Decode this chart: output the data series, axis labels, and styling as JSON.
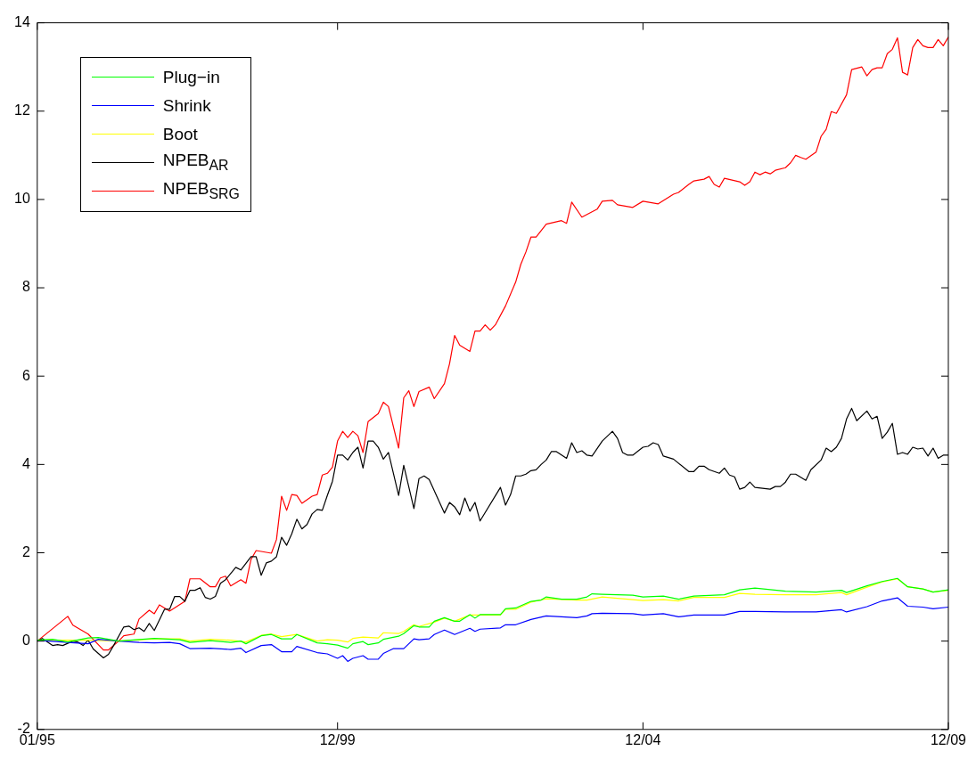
{
  "chart_data": {
    "type": "line",
    "xlim": [
      "1995-01",
      "2009-12"
    ],
    "xticks": [
      {
        "value": "1995-01",
        "label": "01/95"
      },
      {
        "value": "1999-12",
        "label": "12/99"
      },
      {
        "value": "2004-12",
        "label": "12/04"
      },
      {
        "value": "2009-12",
        "label": "12/09"
      }
    ],
    "ylim": [
      -2,
      14
    ],
    "yticks": [
      -2,
      0,
      2,
      4,
      6,
      8,
      10,
      12,
      14
    ],
    "grid": false,
    "legend": "top left",
    "marker": "none",
    "line_style": "solid",
    "series": [
      {
        "name": "Plug−in",
        "color": "#00ff00",
        "x": [
          "1995-01",
          "1995-04",
          "1995-07",
          "1995-11",
          "1996-01",
          "1996-05",
          "1996-12",
          "1997-05",
          "1997-07",
          "1997-11",
          "1998-03",
          "1998-05",
          "1998-06",
          "1998-09",
          "1998-11",
          "1999-01",
          "1999-03",
          "1999-04",
          "1999-08",
          "1999-10",
          "1999-12",
          "2000-02",
          "2000-03",
          "2000-05",
          "2000-06",
          "2000-08",
          "2000-09",
          "2000-12",
          "2001-01",
          "2001-03",
          "2001-04",
          "2001-06",
          "2001-07",
          "2001-09",
          "2001-11",
          "2001-12",
          "2002-02",
          "2002-03",
          "2002-04",
          "2002-08",
          "2002-09",
          "2002-11",
          "2003-02",
          "2003-04",
          "2003-05",
          "2003-08",
          "2003-11",
          "2004-01",
          "2004-02",
          "2004-04",
          "2004-10",
          "2004-12",
          "2005-04",
          "2005-07",
          "2005-10",
          "2006-04",
          "2006-07",
          "2006-10",
          "2007-04",
          "2007-10",
          "2008-03",
          "2008-04",
          "2008-08",
          "2008-11",
          "2009-02",
          "2009-04",
          "2009-07",
          "2009-09",
          "2009-12"
        ],
        "values": [
          0.02,
          0.04,
          -0.02,
          0.07,
          0.08,
          0,
          0.06,
          0.03,
          -0.03,
          0.01,
          -0.03,
          0,
          -0.06,
          0.12,
          0.15,
          0.05,
          0.05,
          0.15,
          -0.04,
          -0.06,
          -0.09,
          -0.16,
          -0.06,
          -0.01,
          -0.08,
          -0.04,
          0.04,
          0.11,
          0.17,
          0.35,
          0.32,
          0.32,
          0.45,
          0.53,
          0.45,
          0.45,
          0.6,
          0.52,
          0.6,
          0.6,
          0.73,
          0.75,
          0.9,
          0.93,
          1.0,
          0.95,
          0.95,
          1.0,
          1.07,
          1.06,
          1.04,
          1.0,
          1.02,
          0.95,
          1.02,
          1.05,
          1.16,
          1.2,
          1.13,
          1.11,
          1.15,
          1.1,
          1.25,
          1.35,
          1.42,
          1.23,
          1.18,
          1.11,
          1.16
        ]
      },
      {
        "name": "Shrink",
        "color": "#0000ff",
        "x": [
          "1995-01",
          "1995-07",
          "1995-11",
          "1996-01",
          "1996-05",
          "1996-09",
          "1996-12",
          "1997-03",
          "1997-05",
          "1997-07",
          "1997-11",
          "1998-03",
          "1998-05",
          "1998-06",
          "1998-09",
          "1998-11",
          "1999-01",
          "1999-03",
          "1999-04",
          "1999-08",
          "1999-10",
          "1999-12",
          "2000-01",
          "2000-02",
          "2000-03",
          "2000-05",
          "2000-06",
          "2000-08",
          "2000-09",
          "2000-11",
          "2001-01",
          "2001-03",
          "2001-04",
          "2001-06",
          "2001-07",
          "2001-09",
          "2001-11",
          "2002-02",
          "2002-03",
          "2002-04",
          "2002-08",
          "2002-09",
          "2002-11",
          "2003-02",
          "2003-05",
          "2003-11",
          "2004-01",
          "2004-02",
          "2004-04",
          "2004-10",
          "2004-12",
          "2005-04",
          "2005-07",
          "2005-10",
          "2006-04",
          "2006-07",
          "2006-10",
          "2007-04",
          "2007-10",
          "2008-03",
          "2008-04",
          "2008-08",
          "2008-11",
          "2009-02",
          "2009-04",
          "2009-07",
          "2009-09",
          "2009-12"
        ],
        "values": [
          0.02,
          -0.03,
          -0.06,
          0.04,
          0,
          -0.03,
          -0.04,
          -0.03,
          -0.06,
          -0.17,
          -0.16,
          -0.19,
          -0.16,
          -0.26,
          -0.1,
          -0.08,
          -0.24,
          -0.24,
          -0.12,
          -0.26,
          -0.29,
          -0.39,
          -0.33,
          -0.46,
          -0.39,
          -0.33,
          -0.41,
          -0.41,
          -0.28,
          -0.17,
          -0.17,
          0.05,
          0.03,
          0.05,
          0.15,
          0.25,
          0.15,
          0.29,
          0.22,
          0.27,
          0.3,
          0.37,
          0.37,
          0.49,
          0.57,
          0.53,
          0.57,
          0.62,
          0.63,
          0.62,
          0.59,
          0.62,
          0.55,
          0.59,
          0.59,
          0.67,
          0.67,
          0.66,
          0.66,
          0.71,
          0.66,
          0.78,
          0.91,
          0.98,
          0.79,
          0.77,
          0.73,
          0.77
        ]
      },
      {
        "name": "Boot",
        "color": "#ffff00",
        "x": [
          "1995-01",
          "1995-07",
          "1995-11",
          "1996-05",
          "1996-12",
          "1997-05",
          "1997-07",
          "1997-11",
          "1998-03",
          "1998-06",
          "1998-09",
          "1998-11",
          "1999-01",
          "1999-04",
          "1999-08",
          "1999-10",
          "1999-12",
          "2000-02",
          "2000-03",
          "2000-05",
          "2000-08",
          "2000-09",
          "2000-12",
          "2001-01",
          "2001-03",
          "2001-04",
          "2001-07",
          "2001-09",
          "2001-11",
          "2002-02",
          "2002-04",
          "2002-08",
          "2002-09",
          "2002-11",
          "2003-02",
          "2003-05",
          "2003-11",
          "2004-01",
          "2004-04",
          "2004-10",
          "2004-12",
          "2005-04",
          "2005-07",
          "2005-10",
          "2006-04",
          "2006-07",
          "2006-10",
          "2007-04",
          "2007-10",
          "2008-03",
          "2008-04",
          "2008-08",
          "2008-11",
          "2009-02",
          "2009-04",
          "2009-07",
          "2009-09",
          "2009-12"
        ],
        "values": [
          0.02,
          0.02,
          0.02,
          0,
          0.05,
          0.05,
          0,
          0.04,
          0.02,
          -0.02,
          0.13,
          0.16,
          0.1,
          0.15,
          0,
          0.03,
          0.02,
          -0.02,
          0.06,
          0.09,
          0.07,
          0.19,
          0.17,
          0.22,
          0.37,
          0.33,
          0.43,
          0.52,
          0.45,
          0.59,
          0.59,
          0.59,
          0.72,
          0.72,
          0.88,
          0.96,
          0.93,
          0.93,
          1.0,
          0.94,
          0.92,
          0.94,
          0.91,
          0.99,
          0.99,
          1.08,
          1.06,
          1.05,
          1.05,
          1.1,
          1.05,
          1.22,
          1.34,
          1.41,
          1.23,
          1.18,
          1.11,
          1.15
        ]
      },
      {
        "name": "NPEB$_{AR}$",
        "color": "#000000",
        "x": [
          "1995-01",
          "1995-02",
          "1995-04",
          "1995-05",
          "1995-06",
          "1995-08",
          "1995-09",
          "1995-10",
          "1995-11",
          "1995-12",
          "1996-02",
          "1996-03",
          "1996-04",
          "1996-06",
          "1996-07",
          "1996-08",
          "1996-09",
          "1996-10",
          "1996-11",
          "1996-12",
          "1997-02",
          "1997-03",
          "1997-04",
          "1997-05",
          "1997-06",
          "1997-07",
          "1997-08",
          "1997-09",
          "1997-10",
          "1997-11",
          "1997-12",
          "1998-01",
          "1998-02",
          "1998-04",
          "1998-05",
          "1998-07",
          "1998-08",
          "1998-09",
          "1998-10",
          "1998-11",
          "1998-12",
          "1999-01",
          "1999-02",
          "1999-03",
          "1999-04",
          "1999-05",
          "1999-06",
          "1999-07",
          "1999-08",
          "1999-09",
          "1999-10",
          "1999-11",
          "1999-12",
          "2000-01",
          "2000-02",
          "2000-03",
          "2000-04",
          "2000-05",
          "2000-06",
          "2000-07",
          "2000-08",
          "2000-09",
          "2000-10",
          "2000-12",
          "2001-01",
          "2001-03",
          "2001-04",
          "2001-05",
          "2001-06",
          "2001-09",
          "2001-10",
          "2001-11",
          "2001-12",
          "2002-01",
          "2002-02",
          "2002-03",
          "2002-04",
          "2002-08",
          "2002-09",
          "2002-10",
          "2002-11",
          "2002-12",
          "2003-01",
          "2003-02",
          "2003-03",
          "2003-04",
          "2003-05",
          "2003-06",
          "2003-07",
          "2003-09",
          "2003-10",
          "2003-11",
          "2003-12",
          "2004-01",
          "2004-02",
          "2004-04",
          "2004-06",
          "2004-07",
          "2004-08",
          "2004-09",
          "2004-10",
          "2004-12",
          "2005-01",
          "2005-02",
          "2005-03",
          "2005-04",
          "2005-06",
          "2005-09",
          "2005-10",
          "2005-11",
          "2005-12",
          "2006-01",
          "2006-03",
          "2006-04",
          "2006-05",
          "2006-06",
          "2006-07",
          "2006-08",
          "2006-09",
          "2006-10",
          "2007-01",
          "2007-02",
          "2007-03",
          "2007-04",
          "2007-05",
          "2007-06",
          "2007-08",
          "2007-09",
          "2007-11",
          "2007-12",
          "2008-01",
          "2008-02",
          "2008-03",
          "2008-04",
          "2008-05",
          "2008-06",
          "2008-08",
          "2008-09",
          "2008-10",
          "2008-11",
          "2008-12",
          "2009-01",
          "2009-02",
          "2009-03",
          "2009-04",
          "2009-05",
          "2009-06",
          "2009-07",
          "2009-08",
          "2009-09",
          "2009-10",
          "2009-11",
          "2009-12"
        ],
        "values": [
          0,
          0.06,
          -0.1,
          -0.08,
          -0.1,
          0,
          -0.02,
          -0.1,
          0.02,
          -0.18,
          -0.38,
          -0.3,
          -0.1,
          0.32,
          0.34,
          0.26,
          0.3,
          0.22,
          0.4,
          0.24,
          0.72,
          0.72,
          1.01,
          1.01,
          0.9,
          1.15,
          1.15,
          1.21,
          0.99,
          0.95,
          1.01,
          1.31,
          1.39,
          1.67,
          1.61,
          1.91,
          1.91,
          1.49,
          1.77,
          1.81,
          1.91,
          2.35,
          2.17,
          2.43,
          2.76,
          2.54,
          2.64,
          2.88,
          2.98,
          2.96,
          3.3,
          3.62,
          4.21,
          4.21,
          4.1,
          4.27,
          4.39,
          3.92,
          4.53,
          4.53,
          4.39,
          4.12,
          4.27,
          3.3,
          3.98,
          3.0,
          3.68,
          3.74,
          3.66,
          2.9,
          3.14,
          3.04,
          2.86,
          3.24,
          2.94,
          3.14,
          2.72,
          3.48,
          3.08,
          3.32,
          3.74,
          3.74,
          3.78,
          3.86,
          3.88,
          4.0,
          4.1,
          4.29,
          4.29,
          4.14,
          4.49,
          4.27,
          4.31,
          4.21,
          4.19,
          4.53,
          4.75,
          4.59,
          4.27,
          4.21,
          4.21,
          4.39,
          4.41,
          4.49,
          4.45,
          4.19,
          4.12,
          3.84,
          3.84,
          3.96,
          3.96,
          3.88,
          3.8,
          3.92,
          3.76,
          3.72,
          3.44,
          3.48,
          3.6,
          3.48,
          3.44,
          3.5,
          3.5,
          3.6,
          3.78,
          3.78,
          3.64,
          3.88,
          4.1,
          4.37,
          4.29,
          4.39,
          4.59,
          5.03,
          5.27,
          4.99,
          5.21,
          5.03,
          5.09,
          4.59,
          4.73,
          4.93,
          4.23,
          4.27,
          4.23,
          4.39,
          4.35,
          4.37,
          4.19,
          4.37,
          4.14,
          4.21,
          4.21
        ]
      },
      {
        "name": "NPEB$_{SRG}$",
        "color": "#ff0000",
        "x": [
          "1995-01",
          "1995-07",
          "1995-08",
          "1995-11",
          "1996-01",
          "1996-02",
          "1996-03",
          "1996-05",
          "1996-06",
          "1996-08",
          "1996-09",
          "1996-11",
          "1996-12",
          "1997-01",
          "1997-03",
          "1997-06",
          "1997-07",
          "1997-09",
          "1997-11",
          "1997-12",
          "1998-01",
          "1998-02",
          "1998-03",
          "1998-05",
          "1998-06",
          "1998-07",
          "1998-08",
          "1998-09",
          "1998-11",
          "1998-12",
          "1999-01",
          "1999-02",
          "1999-03",
          "1999-04",
          "1999-05",
          "1999-07",
          "1999-08",
          "1999-09",
          "1999-10",
          "1999-11",
          "1999-12",
          "2000-01",
          "2000-02",
          "2000-03",
          "2000-04",
          "2000-05",
          "2000-06",
          "2000-08",
          "2000-09",
          "2000-10",
          "2000-12",
          "2001-01",
          "2001-02",
          "2001-03",
          "2001-04",
          "2001-06",
          "2001-07",
          "2001-09",
          "2001-10",
          "2001-11",
          "2001-12",
          "2002-02",
          "2002-03",
          "2002-04",
          "2002-05",
          "2002-06",
          "2002-07",
          "2002-09",
          "2002-11",
          "2002-12",
          "2003-01",
          "2003-02",
          "2003-03",
          "2003-05",
          "2003-08",
          "2003-09",
          "2003-10",
          "2003-12",
          "2004-03",
          "2004-04",
          "2004-06",
          "2004-07",
          "2004-09",
          "2004-10",
          "2004-12",
          "2005-03",
          "2005-06",
          "2005-07",
          "2005-09",
          "2005-10",
          "2005-12",
          "2006-01",
          "2006-02",
          "2006-03",
          "2006-04",
          "2006-07",
          "2006-08",
          "2006-09",
          "2006-10",
          "2006-11",
          "2006-12",
          "2007-01",
          "2007-02",
          "2007-04",
          "2007-05",
          "2007-06",
          "2007-07",
          "2007-08",
          "2007-10",
          "2007-11",
          "2007-12",
          "2008-01",
          "2008-02",
          "2008-04",
          "2008-05",
          "2008-07",
          "2008-08",
          "2008-09",
          "2008-10",
          "2008-11",
          "2008-12",
          "2009-01",
          "2009-02",
          "2009-03",
          "2009-04",
          "2009-05",
          "2009-06",
          "2009-07",
          "2009-08",
          "2009-09",
          "2009-10",
          "2009-11",
          "2009-12"
        ],
        "values": [
          0,
          0.56,
          0.36,
          0.16,
          -0.08,
          -0.2,
          -0.2,
          0,
          0.12,
          0.16,
          0.5,
          0.7,
          0.62,
          0.82,
          0.68,
          0.9,
          1.41,
          1.41,
          1.23,
          1.23,
          1.43,
          1.47,
          1.25,
          1.39,
          1.31,
          1.85,
          2.05,
          2.03,
          1.99,
          2.3,
          3.28,
          2.96,
          3.32,
          3.3,
          3.12,
          3.28,
          3.32,
          3.76,
          3.8,
          3.94,
          4.53,
          4.75,
          4.61,
          4.75,
          4.65,
          4.27,
          4.97,
          5.15,
          5.41,
          5.31,
          4.37,
          5.51,
          5.67,
          5.31,
          5.65,
          5.75,
          5.49,
          5.83,
          6.28,
          6.92,
          6.7,
          6.56,
          7.02,
          7.02,
          7.16,
          7.04,
          7.16,
          7.59,
          8.13,
          8.53,
          8.81,
          9.15,
          9.15,
          9.44,
          9.52,
          9.46,
          9.94,
          9.6,
          9.78,
          9.96,
          9.98,
          9.88,
          9.84,
          9.82,
          9.96,
          9.9,
          10.12,
          10.16,
          10.34,
          10.42,
          10.46,
          10.52,
          10.34,
          10.28,
          10.48,
          10.4,
          10.32,
          10.4,
          10.62,
          10.56,
          10.62,
          10.58,
          10.66,
          10.72,
          10.83,
          11.0,
          10.95,
          10.91,
          11.07,
          11.43,
          11.59,
          11.99,
          11.95,
          12.37,
          12.94,
          13.0,
          12.8,
          12.94,
          12.98,
          12.98,
          13.3,
          13.4,
          13.66,
          12.88,
          12.82,
          13.44,
          13.62,
          13.48,
          13.44,
          13.44,
          13.62,
          13.48,
          13.68
        ]
      }
    ]
  }
}
